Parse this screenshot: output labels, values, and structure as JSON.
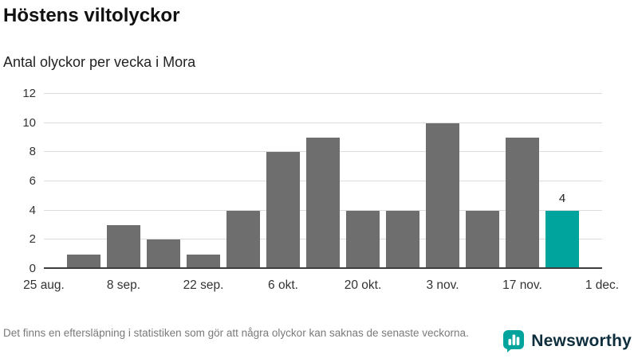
{
  "header": {
    "title": "Höstens viltolyckor",
    "subtitle": "Antal olyckor per vecka i Mora"
  },
  "chart_data": {
    "type": "bar",
    "title": "Höstens viltolyckor",
    "subtitle": "Antal olyckor per vecka i Mora",
    "x_tick_labels": [
      "25 aug.",
      "8 sep.",
      "22 sep.",
      "6 okt.",
      "20 okt.",
      "3 nov.",
      "17 nov.",
      "1 dec."
    ],
    "values": [
      1,
      3,
      2,
      1,
      4,
      8,
      9,
      4,
      4,
      10,
      4,
      9,
      4
    ],
    "y_ticks": [
      0,
      2,
      4,
      6,
      8,
      10,
      12
    ],
    "ylim": [
      0,
      12
    ],
    "weeks_span": 14,
    "highlight_index": 12,
    "highlight_label": "4",
    "bar_color": "#6e6e6e",
    "highlight_color": "#00a49c",
    "grid": "horizontal",
    "legend": "none"
  },
  "footer": {
    "note": "Det finns en eftersläpning i statistiken som gör att några olyckor kan saknas de senaste veckorna.",
    "brand": "Newsworthy",
    "brand_color": "#00a49c"
  }
}
